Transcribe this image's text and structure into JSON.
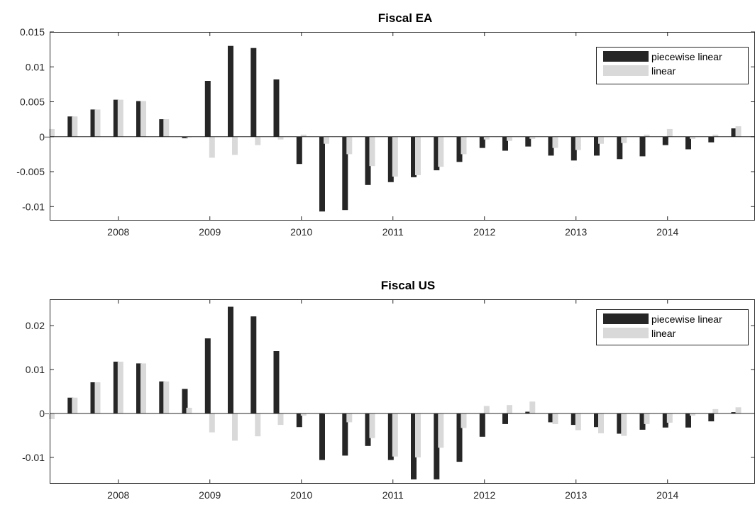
{
  "colors": {
    "piecewise": "#262626",
    "linear": "#d9d9d9",
    "axis": "#262626",
    "background": "#ffffff"
  },
  "chart_data": [
    {
      "type": "bar",
      "title": "Fiscal EA",
      "xlabel": "",
      "ylabel": "",
      "ylim": [
        -0.012,
        0.015
      ],
      "yticks": [
        -0.01,
        -0.005,
        0,
        0.005,
        0.01,
        0.015
      ],
      "ytick_labels": [
        "-0.01",
        "-0.005",
        "0",
        "0.005",
        "0.01",
        "0.015"
      ],
      "xticks": [
        2008,
        2009,
        2010,
        2011,
        2012,
        2013,
        2014
      ],
      "xtick_labels": [
        "2008",
        "2009",
        "2010",
        "2011",
        "2012",
        "2013",
        "2014"
      ],
      "xlim": [
        2007.25,
        2015.0
      ],
      "legend_placement": "top-right",
      "x": [
        2007.25,
        2007.5,
        2007.75,
        2008.0,
        2008.25,
        2008.5,
        2008.75,
        2009.0,
        2009.25,
        2009.5,
        2009.75,
        2010.0,
        2010.25,
        2010.5,
        2010.75,
        2011.0,
        2011.25,
        2011.5,
        2011.75,
        2012.0,
        2012.25,
        2012.5,
        2012.75,
        2013.0,
        2013.25,
        2013.5,
        2013.75,
        2014.0,
        2014.25,
        2014.5,
        2014.75
      ],
      "series": [
        {
          "name": "piecewise linear",
          "values": [
            0.0,
            0.0029,
            0.0039,
            0.0053,
            0.0051,
            0.0025,
            -0.0002,
            0.008,
            0.013,
            0.0127,
            0.0082,
            -0.0039,
            -0.0107,
            -0.0105,
            -0.0069,
            -0.0065,
            -0.0058,
            -0.0048,
            -0.0036,
            -0.0016,
            -0.002,
            -0.0014,
            -0.0027,
            -0.0034,
            -0.0027,
            -0.0032,
            -0.0028,
            -0.0012,
            -0.0018,
            -0.0008,
            0.0012
          ]
        },
        {
          "name": "linear",
          "values": [
            0.0011,
            0.0029,
            0.0039,
            0.0053,
            0.0051,
            0.0025,
            -0.0001,
            -0.003,
            -0.0026,
            -0.0012,
            -0.0004,
            0.0003,
            -0.001,
            -0.0025,
            -0.0042,
            -0.0057,
            -0.0055,
            -0.0043,
            -0.0025,
            -0.0004,
            -0.0006,
            -0.0003,
            -0.0016,
            -0.0019,
            -0.001,
            -0.0009,
            0.0003,
            0.0011,
            -0.0003,
            0.0003,
            0.0015
          ]
        }
      ]
    },
    {
      "type": "bar",
      "title": "Fiscal US",
      "xlabel": "",
      "ylabel": "",
      "ylim": [
        -0.016,
        0.026
      ],
      "yticks": [
        -0.01,
        0,
        0.01,
        0.02
      ],
      "ytick_labels": [
        "-0.01",
        "0",
        "0.01",
        "0.02"
      ],
      "xticks": [
        2008,
        2009,
        2010,
        2011,
        2012,
        2013,
        2014
      ],
      "xtick_labels": [
        "2008",
        "2009",
        "2010",
        "2011",
        "2012",
        "2013",
        "2014"
      ],
      "xlim": [
        2007.25,
        2015.0
      ],
      "legend_placement": "top-right",
      "x": [
        2007.25,
        2007.5,
        2007.75,
        2008.0,
        2008.25,
        2008.5,
        2008.75,
        2009.0,
        2009.25,
        2009.5,
        2009.75,
        2010.0,
        2010.25,
        2010.5,
        2010.75,
        2011.0,
        2011.25,
        2011.5,
        2011.75,
        2012.0,
        2012.25,
        2012.5,
        2012.75,
        2013.0,
        2013.25,
        2013.5,
        2013.75,
        2014.0,
        2014.25,
        2014.5,
        2014.75
      ],
      "series": [
        {
          "name": "piecewise linear",
          "values": [
            0.0,
            0.0036,
            0.0071,
            0.0118,
            0.0114,
            0.0073,
            0.0056,
            0.0171,
            0.0243,
            0.0221,
            0.0142,
            -0.0031,
            -0.0106,
            -0.0096,
            -0.0074,
            -0.0106,
            -0.015,
            -0.015,
            -0.011,
            -0.0053,
            -0.0024,
            0.0004,
            -0.002,
            -0.0026,
            -0.0031,
            -0.0046,
            -0.0037,
            -0.0032,
            -0.0032,
            -0.0018,
            0.0003
          ]
        },
        {
          "name": "linear",
          "values": [
            -0.0013,
            0.0036,
            0.0071,
            0.0118,
            0.0114,
            0.0073,
            0.0013,
            -0.0043,
            -0.0062,
            -0.0052,
            -0.0026,
            -0.0005,
            -0.0001,
            -0.002,
            -0.0056,
            -0.0098,
            -0.01,
            -0.0078,
            -0.0033,
            0.0017,
            0.0019,
            0.0027,
            -0.0024,
            -0.0038,
            -0.0045,
            -0.0051,
            -0.0024,
            -0.0021,
            -0.0005,
            0.001,
            0.0014
          ]
        }
      ]
    }
  ]
}
